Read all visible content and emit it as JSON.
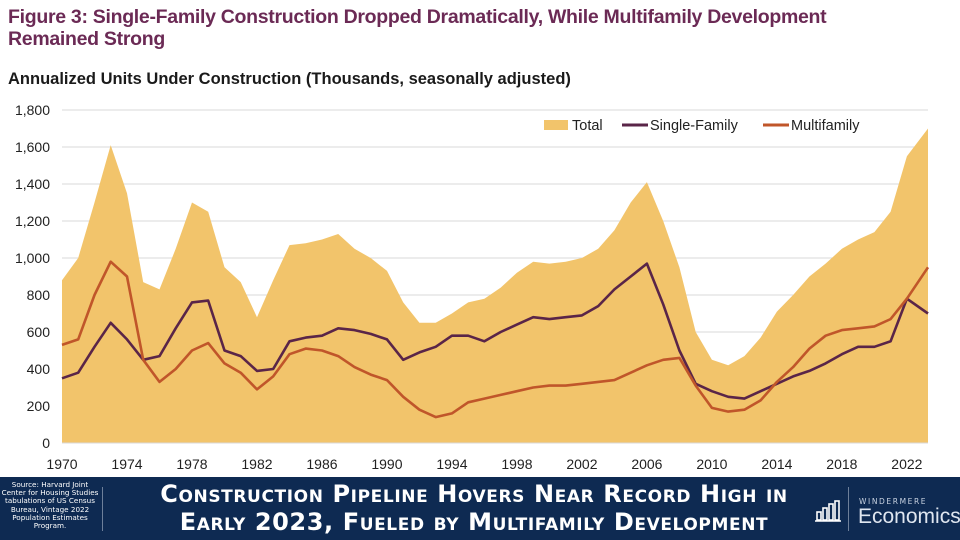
{
  "figure_title": "Figure 3: Single-Family Construction Dropped Dramatically, While Multifamily Development Remained Strong",
  "banner": {
    "source": "Source: Harvard Joint Center for Housing Studies tabulations of US Census Bureau, Vintage 2022 Population Estimates Program.",
    "headline_line1": "Construction Pipeline Hovers Near Record High in",
    "headline_line2": "Early 2023, Fueled by Multifamily Development",
    "brand_top": "WINDERMERE",
    "brand_main": "Economics"
  },
  "colors": {
    "total": "#f2c46b",
    "single_family": "#5a2548",
    "multifamily": "#c0562a",
    "banner": "#0e2a52",
    "title": "#6b2a55"
  },
  "chart_data": {
    "type": "area",
    "title": "Annualized Units Under Construction (Thousands, seasonally adjusted)",
    "xlabel": "",
    "ylabel": "",
    "ylim": [
      0,
      1800
    ],
    "xlim": [
      1970,
      2023.3
    ],
    "grid": true,
    "legend_position": "top-right",
    "y_ticks": [
      "0",
      "200",
      "400",
      "600",
      "800",
      "1,000",
      "1,200",
      "1,400",
      "1,600",
      "1,800"
    ],
    "x_ticks": [
      "1970",
      "1974",
      "1978",
      "1982",
      "1986",
      "1990",
      "1994",
      "1998",
      "2002",
      "2006",
      "2010",
      "2014",
      "2018",
      "2022"
    ],
    "x": [
      1970,
      1971,
      1972,
      1973,
      1974,
      1975,
      1976,
      1977,
      1978,
      1979,
      1980,
      1981,
      1982,
      1983,
      1984,
      1985,
      1986,
      1987,
      1988,
      1989,
      1990,
      1991,
      1992,
      1993,
      1994,
      1995,
      1996,
      1997,
      1998,
      1999,
      2000,
      2001,
      2002,
      2003,
      2004,
      2005,
      2006,
      2007,
      2008,
      2009,
      2010,
      2011,
      2012,
      2013,
      2014,
      2015,
      2016,
      2017,
      2018,
      2019,
      2020,
      2021,
      2022,
      2023
    ],
    "series": [
      {
        "name": "Total",
        "kind": "area",
        "values": [
          880,
          1000,
          1300,
          1610,
          1350,
          870,
          830,
          1050,
          1300,
          1250,
          950,
          870,
          680,
          880,
          1070,
          1080,
          1100,
          1130,
          1050,
          1000,
          930,
          760,
          650,
          650,
          700,
          760,
          780,
          840,
          920,
          980,
          970,
          980,
          1000,
          1050,
          1150,
          1300,
          1410,
          1200,
          950,
          600,
          450,
          420,
          470,
          570,
          710,
          800,
          900,
          970,
          1050,
          1100,
          1140,
          1250,
          1550,
          1700
        ]
      },
      {
        "name": "Single-Family",
        "kind": "line",
        "values": [
          350,
          380,
          520,
          650,
          560,
          450,
          470,
          620,
          760,
          770,
          500,
          470,
          390,
          400,
          550,
          570,
          580,
          620,
          610,
          590,
          560,
          450,
          490,
          520,
          580,
          580,
          550,
          600,
          640,
          680,
          670,
          680,
          690,
          740,
          830,
          900,
          970,
          750,
          500,
          320,
          280,
          250,
          240,
          280,
          320,
          360,
          390,
          430,
          480,
          520,
          520,
          550,
          780,
          700
        ]
      },
      {
        "name": "Multifamily",
        "kind": "line",
        "values": [
          530,
          560,
          800,
          980,
          900,
          450,
          330,
          400,
          500,
          540,
          430,
          380,
          290,
          360,
          480,
          510,
          500,
          470,
          410,
          370,
          340,
          250,
          180,
          140,
          160,
          220,
          240,
          260,
          280,
          300,
          310,
          310,
          320,
          330,
          340,
          380,
          420,
          450,
          460,
          310,
          190,
          170,
          180,
          230,
          330,
          410,
          510,
          580,
          610,
          620,
          630,
          670,
          780,
          950
        ]
      }
    ]
  }
}
